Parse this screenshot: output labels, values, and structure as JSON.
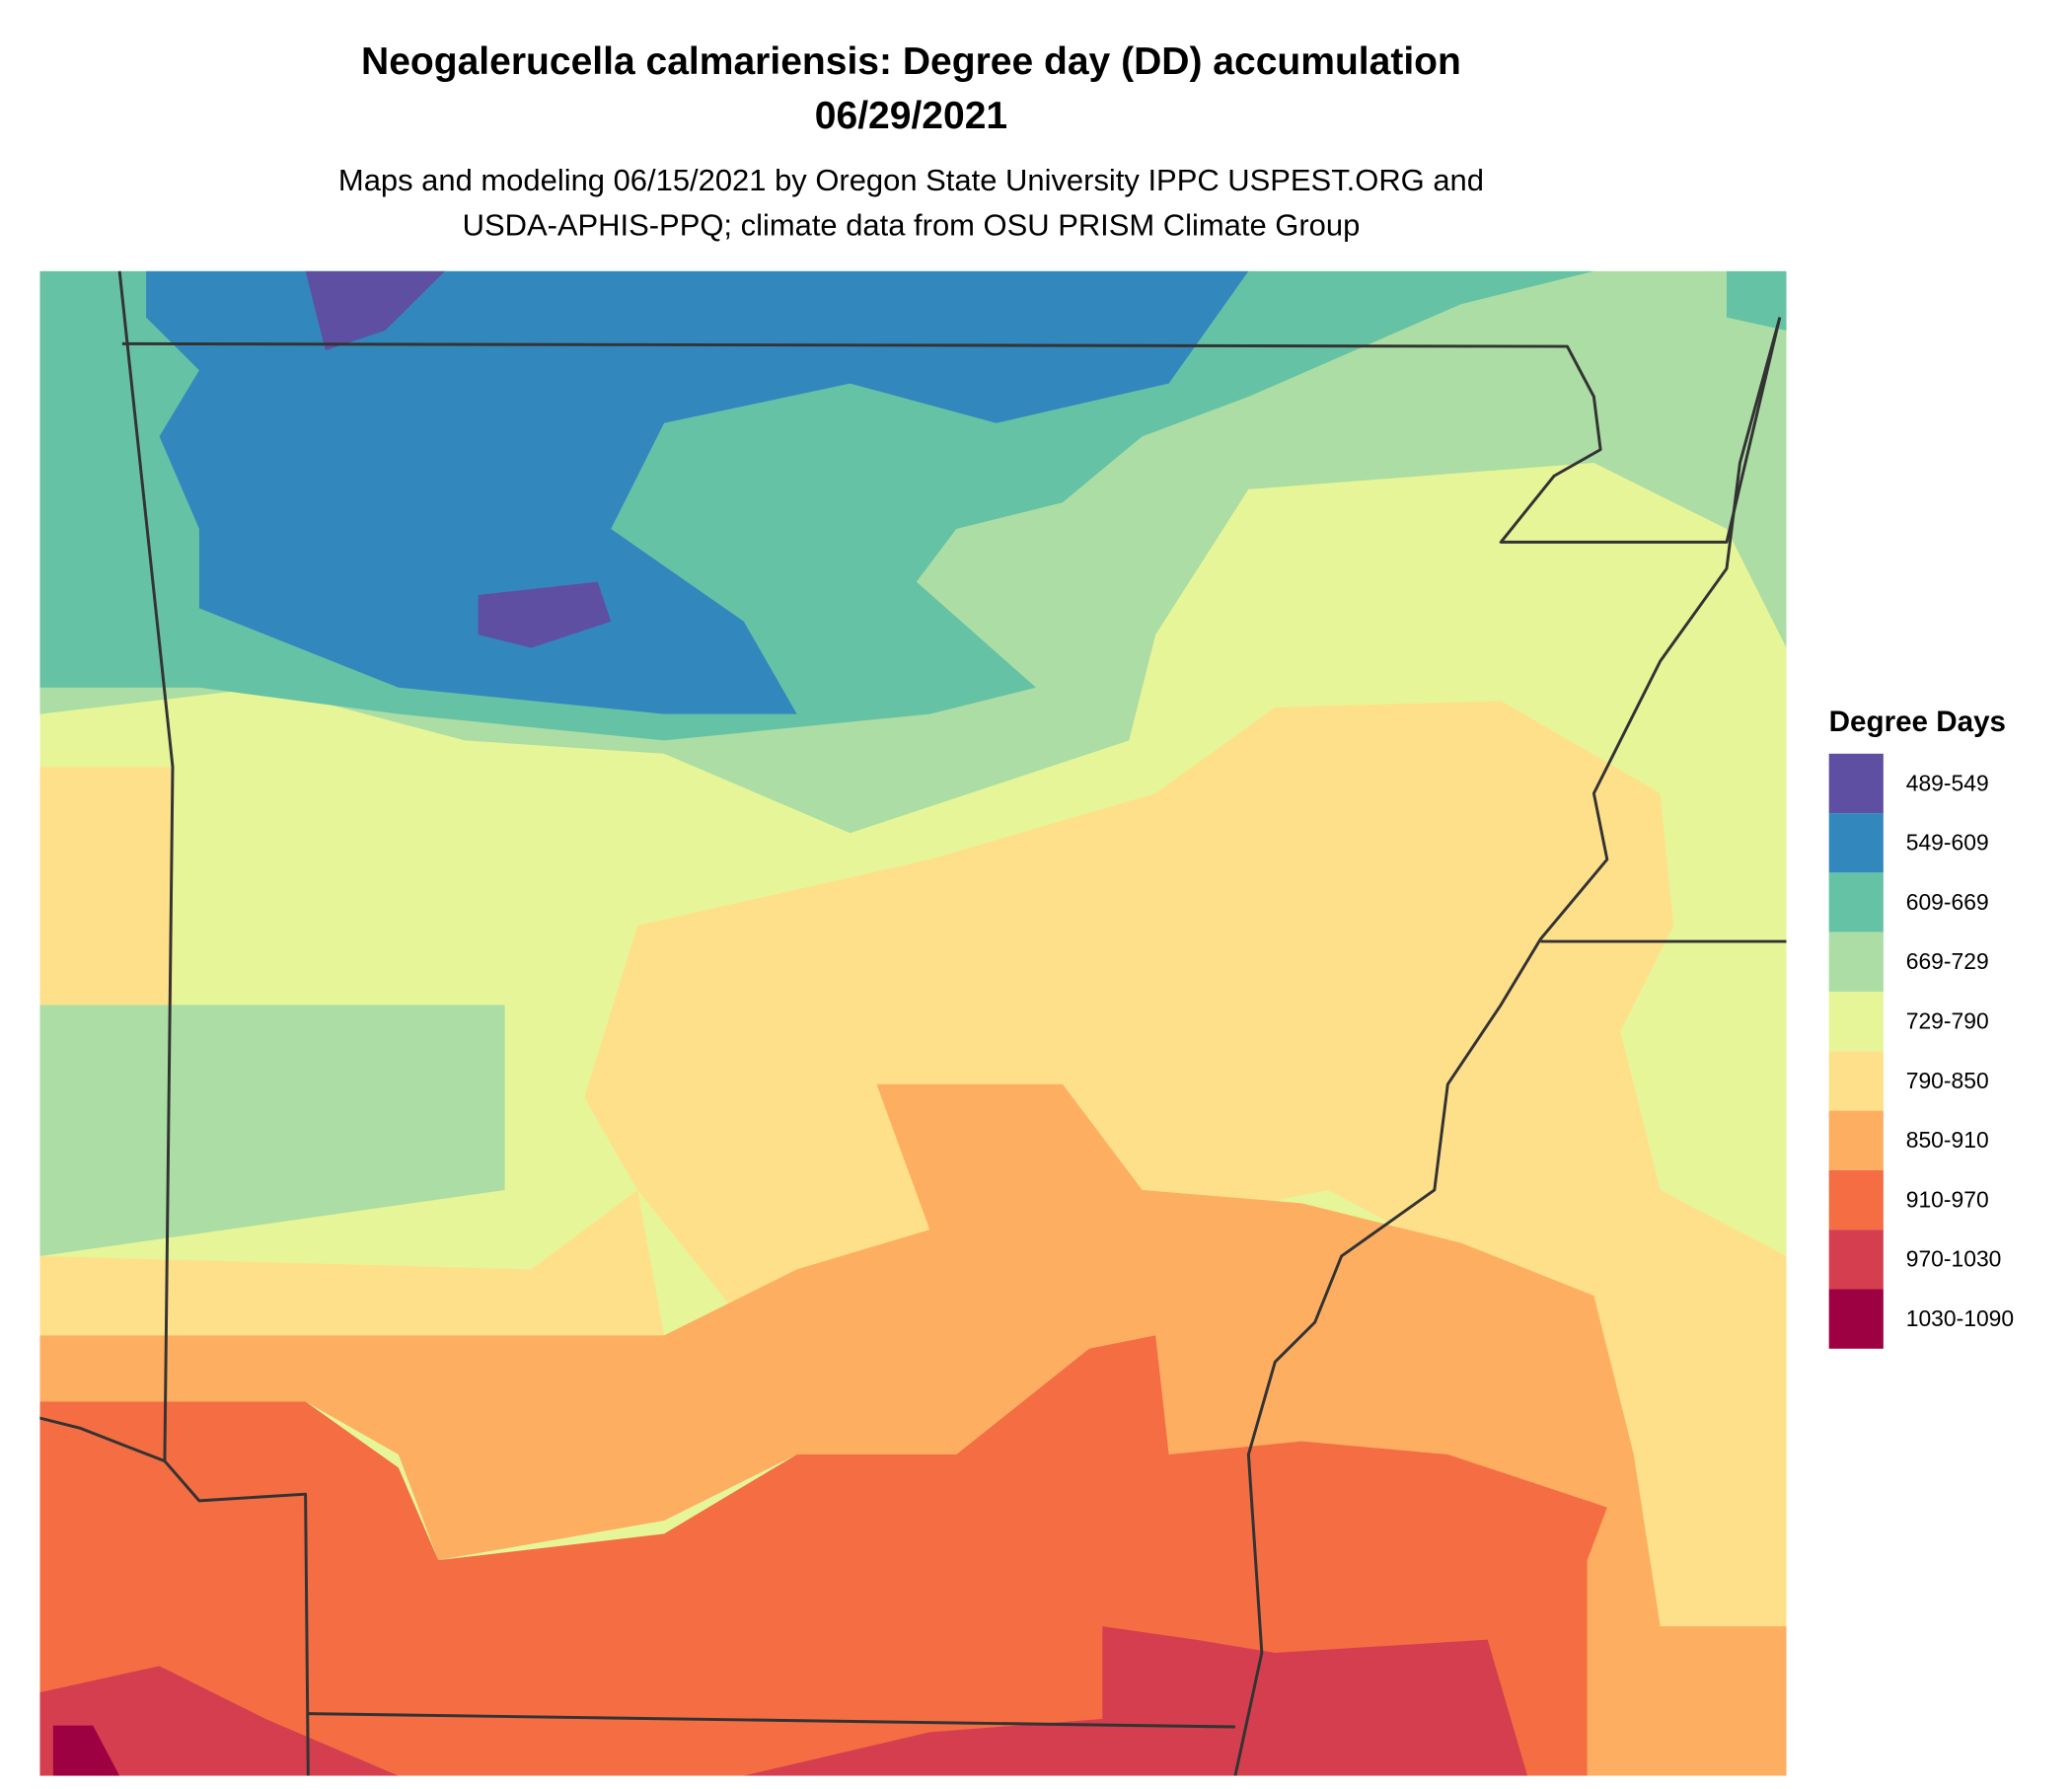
{
  "header": {
    "title": "Neogalerucella calmariensis: Degree day (DD) accumulation",
    "date": "06/29/2021",
    "subtitle_lines": [
      "Maps and modeling 06/15/2021 by Oregon State University IPPC USPEST.ORG and",
      "USDA-APHIS-PPQ; climate data from OSU PRISM Climate Group"
    ]
  },
  "legend": {
    "title": "Degree Days",
    "items": [
      {
        "label": "489-549",
        "color": "#5e4fa2"
      },
      {
        "label": "549-609",
        "color": "#3288bd"
      },
      {
        "label": "609-669",
        "color": "#66c2a5"
      },
      {
        "label": "669-729",
        "color": "#abdda4"
      },
      {
        "label": "729-790",
        "color": "#e6f598"
      },
      {
        "label": "790-850",
        "color": "#fee08b"
      },
      {
        "label": "850-910",
        "color": "#fdae61"
      },
      {
        "label": "910-970",
        "color": "#f46d43"
      },
      {
        "label": "970-1030",
        "color": "#d53e4f"
      },
      {
        "label": "1030-1090",
        "color": "#9e0142"
      }
    ]
  }
}
